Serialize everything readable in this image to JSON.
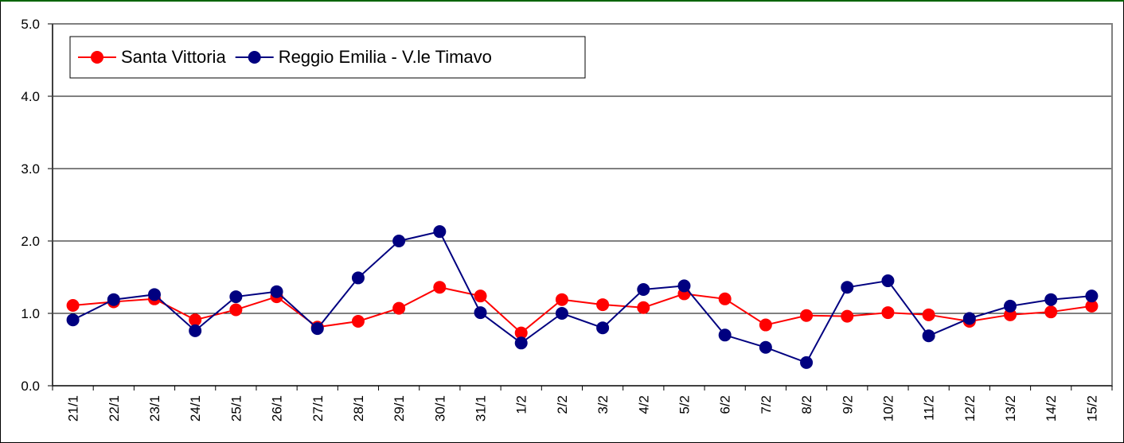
{
  "chart_data": {
    "type": "line",
    "categories": [
      "21/1",
      "22/1",
      "23/1",
      "24/1",
      "25/1",
      "26/1",
      "27/1",
      "28/1",
      "29/1",
      "30/1",
      "31/1",
      "1/2",
      "2/2",
      "3/2",
      "4/2",
      "5/2",
      "6/2",
      "7/2",
      "8/2",
      "9/2",
      "10/2",
      "11/2",
      "12/2",
      "13/2",
      "14/2",
      "15/2"
    ],
    "series": [
      {
        "name": "Santa Vittoria",
        "color": "#ff0000",
        "values": [
          1.11,
          1.16,
          1.2,
          0.91,
          1.05,
          1.23,
          0.81,
          0.89,
          1.07,
          1.36,
          1.24,
          0.73,
          1.19,
          1.12,
          1.08,
          1.27,
          1.2,
          0.84,
          0.97,
          0.96,
          1.01,
          0.98,
          0.89,
          0.98,
          1.02,
          1.1
        ]
      },
      {
        "name": "Reggio Emilia - V.le Timavo",
        "color": "#000080",
        "values": [
          0.91,
          1.19,
          1.26,
          0.76,
          1.23,
          1.3,
          0.79,
          1.49,
          2.0,
          2.13,
          1.01,
          0.59,
          1.0,
          0.8,
          1.33,
          1.38,
          0.7,
          0.53,
          0.32,
          1.36,
          1.45,
          0.69,
          0.93,
          1.1,
          1.19,
          1.24
        ]
      }
    ],
    "ylim": [
      0,
      5
    ],
    "yticks": [
      {
        "value": 0,
        "label": "0.0"
      },
      {
        "value": 1,
        "label": "1.0"
      },
      {
        "value": 2,
        "label": "2.0"
      },
      {
        "value": 3,
        "label": "3.0"
      },
      {
        "value": 4,
        "label": "4.0"
      },
      {
        "value": 5,
        "label": "5.0"
      }
    ],
    "grid": true,
    "legend": "upper left"
  }
}
